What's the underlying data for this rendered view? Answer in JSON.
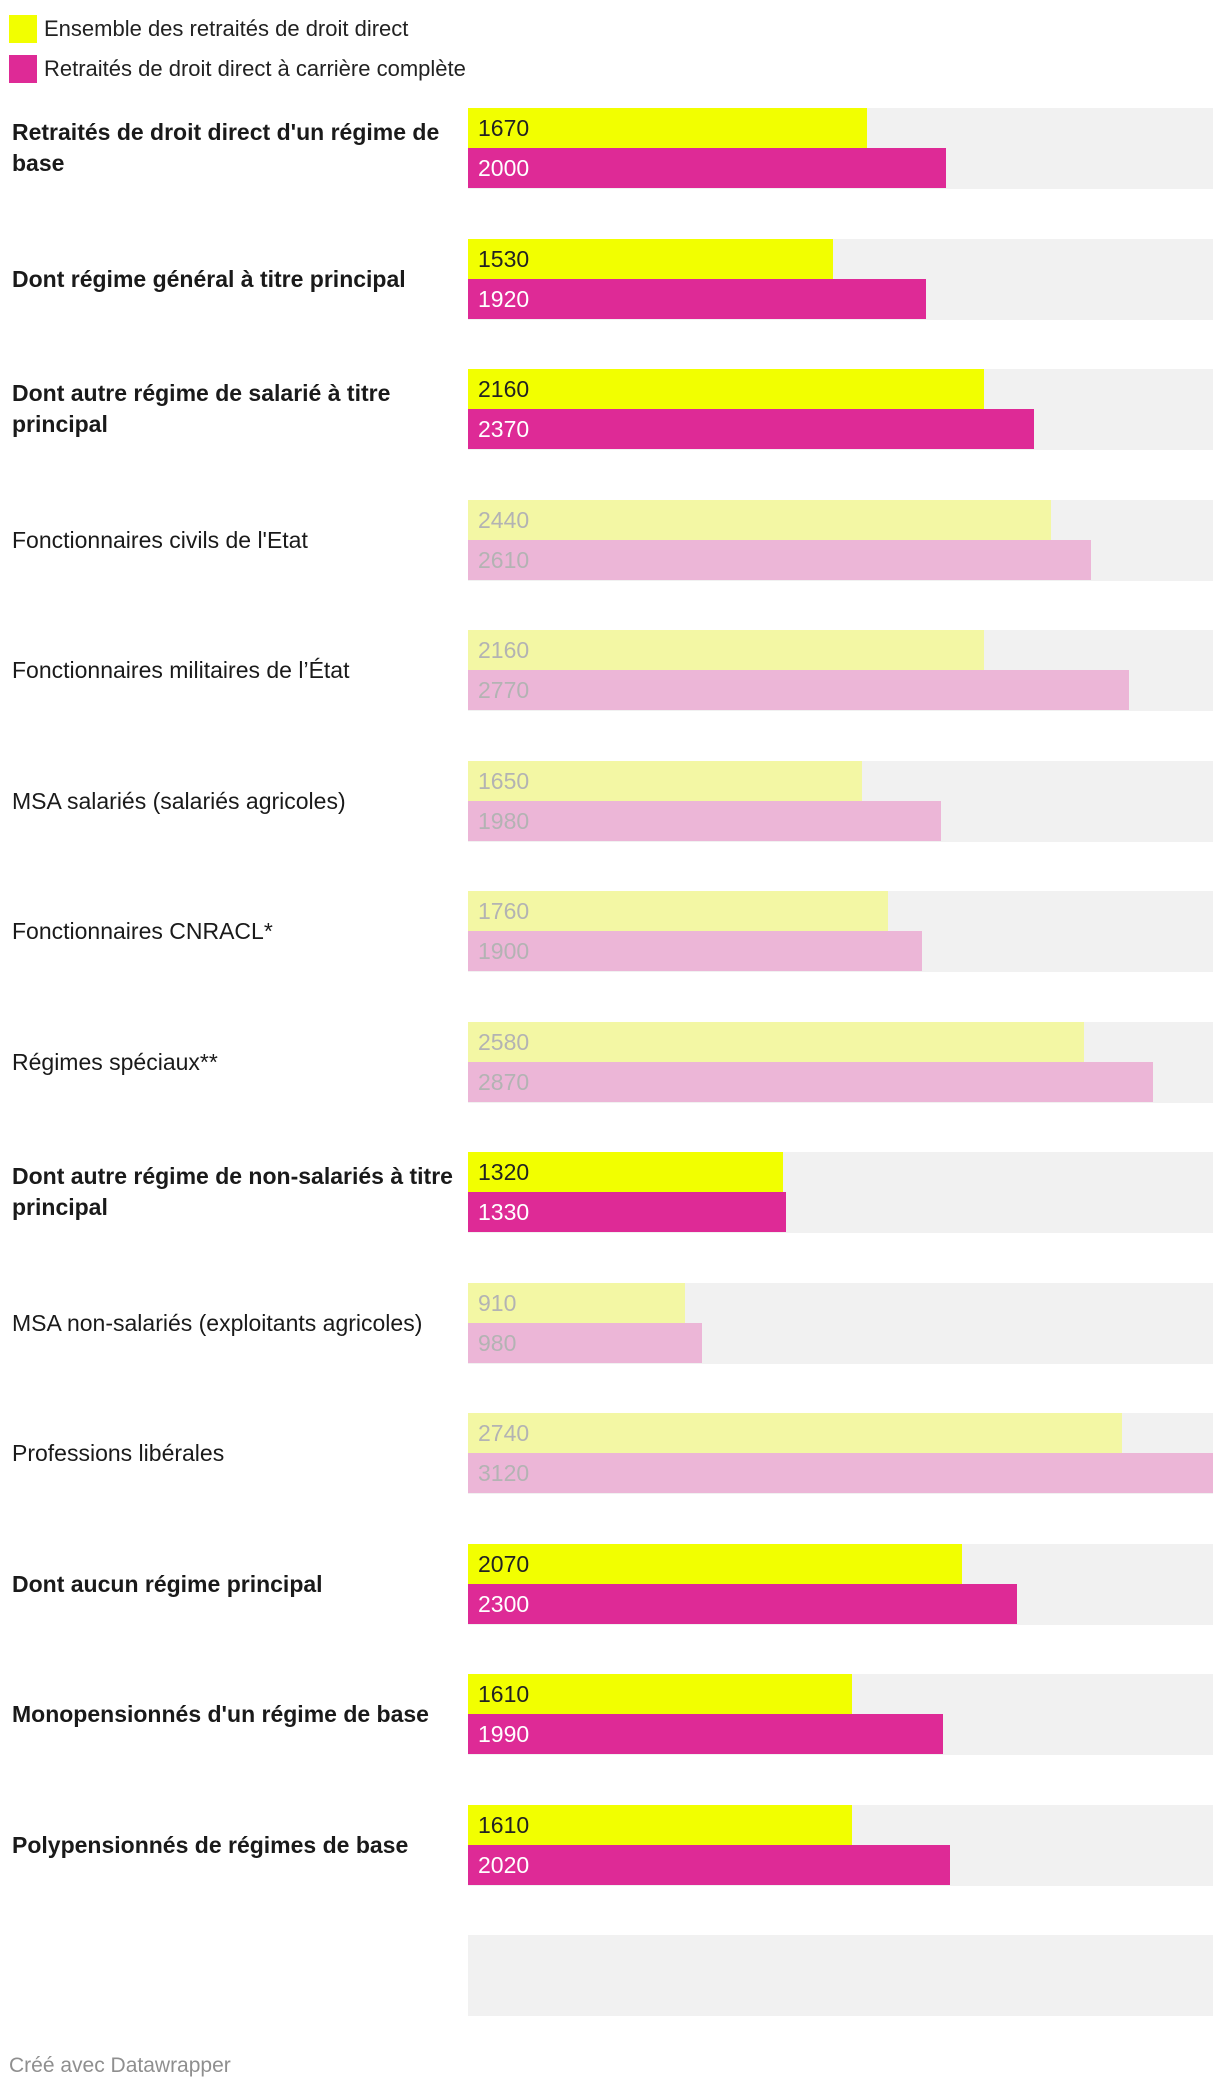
{
  "legend": [
    {
      "label": "Ensemble des retraités de droit direct",
      "color": "#f2ff00"
    },
    {
      "label": "Retraités de droit direct à carrière complète",
      "color": "#de2a96"
    }
  ],
  "colors": {
    "series1": "#f2ff00",
    "series2": "#de2a96",
    "series1_faded": "#f3f7a4",
    "series2_faded": "#ecb6d7",
    "text_dark": "#222222",
    "text_faded": "#b3b3b3",
    "track": "#f1f1f1"
  },
  "chart_data": {
    "type": "bar",
    "orientation": "horizontal",
    "x_max": 3120,
    "series": [
      {
        "name": "Ensemble des retraités de droit direct"
      },
      {
        "name": "Retraités de droit direct à carrière complète"
      }
    ],
    "rows": [
      {
        "label": "Retraités de droit direct d'un régime de base",
        "emphasis": true,
        "values": [
          1670,
          2000
        ]
      },
      {
        "label": "Dont régime général à titre principal",
        "emphasis": true,
        "values": [
          1530,
          1920
        ]
      },
      {
        "label": "Dont autre régime de salarié à titre principal",
        "emphasis": true,
        "values": [
          2160,
          2370
        ]
      },
      {
        "label": "Fonctionnaires civils de l'Etat",
        "emphasis": false,
        "values": [
          2440,
          2610
        ]
      },
      {
        "label": "Fonctionnaires militaires de l’État",
        "emphasis": false,
        "values": [
          2160,
          2770
        ]
      },
      {
        "label": "MSA salariés (salariés agricoles)",
        "emphasis": false,
        "values": [
          1650,
          1980
        ]
      },
      {
        "label": "Fonctionnaires CNRACL*",
        "emphasis": false,
        "values": [
          1760,
          1900
        ]
      },
      {
        "label": "Régimes spéciaux**",
        "emphasis": false,
        "values": [
          2580,
          2870
        ]
      },
      {
        "label": "Dont autre régime de non-salariés à titre principal",
        "emphasis": true,
        "values": [
          1320,
          1330
        ]
      },
      {
        "label": "MSA non-salariés (exploitants agricoles)",
        "emphasis": false,
        "values": [
          910,
          980
        ]
      },
      {
        "label": "Professions libérales",
        "emphasis": false,
        "values": [
          2740,
          3120
        ]
      },
      {
        "label": "Dont aucun régime principal",
        "emphasis": true,
        "values": [
          2070,
          2300
        ]
      },
      {
        "label": "Monopensionnés d'un régime de base",
        "emphasis": true,
        "values": [
          1610,
          1990
        ]
      },
      {
        "label": "Polypensionnés de régimes de base",
        "emphasis": true,
        "values": [
          1610,
          2020
        ]
      },
      {
        "label": "",
        "emphasis": false,
        "values": [
          null,
          null
        ]
      }
    ]
  },
  "footer": {
    "credit": "Créé avec Datawrapper"
  }
}
